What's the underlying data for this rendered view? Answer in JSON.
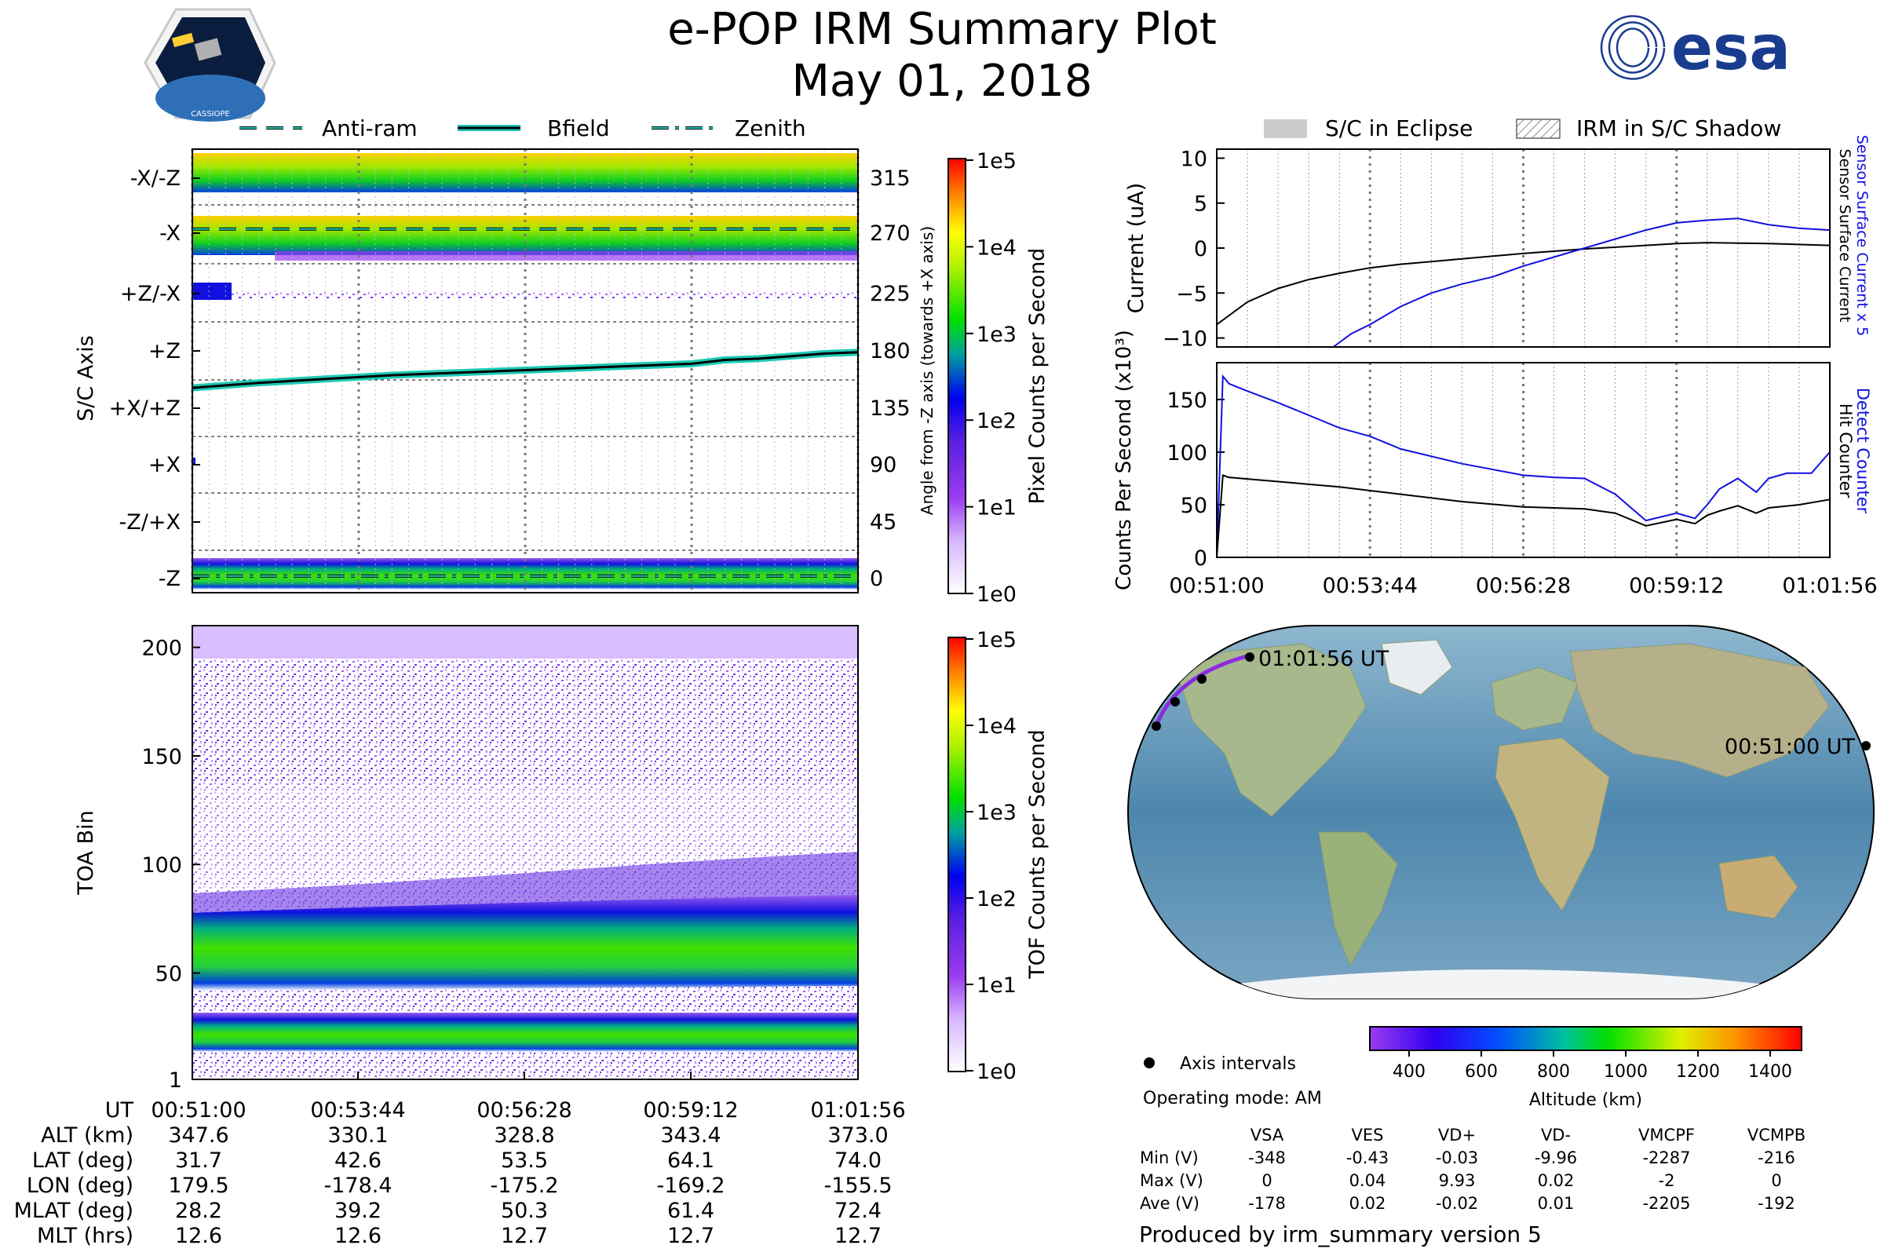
{
  "header": {
    "title": "e-POP IRM Summary Plot",
    "date": "May 01, 2018",
    "mission_logo_text": "CASSIOPE",
    "agency_logo_text": "esa"
  },
  "colors": {
    "accent_cyan": "#1ec9b4",
    "detect_blue": "#1010e0",
    "eclipse_gray": "#cccccc",
    "track_purple": "#8a2be2"
  },
  "time_ticks": [
    "00:51:00",
    "00:53:44",
    "00:56:28",
    "00:59:12",
    "01:01:56"
  ],
  "chart_data": [
    {
      "type": "heatmap",
      "id": "sc_axis_panel",
      "ylabel": "S/C Axis",
      "right_ylabel": "Angle from -Z axis (towards +X axis)",
      "legend": [
        {
          "name": "Anti-ram",
          "style": "dashed"
        },
        {
          "name": "Bfield",
          "style": "solid"
        },
        {
          "name": "Zenith",
          "style": "dashdot"
        }
      ],
      "axis_labels": [
        "-X/-Z",
        "-X",
        "+Z/-X",
        "+Z",
        "+X/+Z",
        "+X",
        "-Z/+X",
        "-Z"
      ],
      "angle_ticks": [
        315,
        270,
        225,
        180,
        135,
        90,
        45,
        0
      ],
      "colorbar": {
        "label": "Pixel Counts per Second",
        "ticks": [
          "1e5",
          "1e4",
          "1e3",
          "1e2",
          "1e1",
          "1e0"
        ]
      },
      "bfield_angle_deg": {
        "t": [
          0,
          0.1,
          0.2,
          0.3,
          0.4,
          0.5,
          0.6,
          0.7,
          0.75,
          0.8,
          0.85,
          0.9,
          0.95,
          1.0
        ],
        "values": [
          150,
          154,
          157,
          160,
          162,
          164,
          166,
          168,
          169,
          172,
          173,
          175,
          177,
          178
        ]
      },
      "antiram_angle_deg": 275,
      "zenith_angle_deg": 2
    },
    {
      "type": "heatmap",
      "id": "toa_panel",
      "ylabel": "TOA Bin",
      "yticks": [
        1,
        50,
        100,
        150,
        200
      ],
      "ylim": [
        1,
        210
      ],
      "colorbar": {
        "label": "TOF Counts per Second",
        "ticks": [
          "1e5",
          "1e4",
          "1e3",
          "1e2",
          "1e1",
          "1e0"
        ]
      },
      "bands": [
        {
          "center_bin": 57,
          "width": 18
        },
        {
          "center_bin": 21,
          "width": 10
        }
      ]
    },
    {
      "type": "line",
      "id": "current_panel",
      "ylabel": "Current (uA)",
      "yticks": [
        10,
        5,
        0,
        -5,
        -10
      ],
      "ylim": [
        -11,
        11
      ],
      "legend": [
        {
          "name": "S/C in Eclipse",
          "style": "gray-fill"
        },
        {
          "name": "IRM in S/C Shadow",
          "style": "hatch"
        }
      ],
      "right_labels": {
        "blue": "Sensor Surface Current x 5",
        "black": "Sensor Surface Current"
      },
      "series": [
        {
          "name": "Sensor Surface Current",
          "color": "#000000",
          "t": [
            0,
            0.05,
            0.1,
            0.15,
            0.2,
            0.25,
            0.3,
            0.35,
            0.4,
            0.5,
            0.6,
            0.7,
            0.75,
            0.8,
            0.9,
            1.0
          ],
          "values": [
            -8.5,
            -6,
            -4.5,
            -3.5,
            -2.8,
            -2.2,
            -1.8,
            -1.5,
            -1.2,
            -0.6,
            -0.1,
            0.3,
            0.5,
            0.6,
            0.5,
            0.3
          ]
        },
        {
          "name": "Sensor Surface Current x 5",
          "color": "#1010e0",
          "t": [
            0.19,
            0.22,
            0.25,
            0.3,
            0.35,
            0.4,
            0.45,
            0.5,
            0.55,
            0.6,
            0.65,
            0.7,
            0.75,
            0.8,
            0.85,
            0.9,
            0.95,
            1.0
          ],
          "values": [
            -11,
            -9.5,
            -8.5,
            -6.5,
            -5,
            -4,
            -3.2,
            -2,
            -1,
            0,
            1,
            2,
            2.8,
            3.1,
            3.3,
            2.6,
            2.2,
            2.0
          ]
        }
      ]
    },
    {
      "type": "line",
      "id": "counts_panel",
      "ylabel": "Counts Per Second (x10³)",
      "yticks": [
        150,
        100,
        50,
        0
      ],
      "ylim": [
        0,
        185
      ],
      "right_labels": {
        "blue": "Detect Counter",
        "black": "Hit Counter"
      },
      "series": [
        {
          "name": "Detect Counter",
          "color": "#1010e0",
          "t": [
            0,
            0.01,
            0.02,
            0.05,
            0.1,
            0.15,
            0.2,
            0.25,
            0.3,
            0.4,
            0.5,
            0.55,
            0.6,
            0.65,
            0.7,
            0.75,
            0.78,
            0.8,
            0.82,
            0.85,
            0.88,
            0.9,
            0.93,
            0.97,
            1.0
          ],
          "values": [
            0,
            172,
            165,
            158,
            147,
            135,
            123,
            115,
            103,
            89,
            78,
            76,
            75,
            60,
            35,
            42,
            37,
            50,
            65,
            75,
            62,
            75,
            80,
            80,
            100
          ]
        },
        {
          "name": "Hit Counter",
          "color": "#000000",
          "t": [
            0,
            0.01,
            0.02,
            0.1,
            0.2,
            0.3,
            0.4,
            0.5,
            0.6,
            0.65,
            0.7,
            0.75,
            0.78,
            0.8,
            0.82,
            0.85,
            0.88,
            0.9,
            0.95,
            1.0
          ],
          "values": [
            0,
            78,
            76,
            72,
            67,
            60,
            53,
            48,
            46,
            42,
            30,
            36,
            32,
            40,
            44,
            49,
            42,
            47,
            50,
            55
          ]
        }
      ]
    }
  ],
  "orbit_table": {
    "row_labels": [
      "UT",
      "ALT (km)",
      "LAT (deg)",
      "LON (deg)",
      "MLAT (deg)",
      "MLT (hrs)"
    ],
    "columns": [
      [
        "00:51:00",
        "347.6",
        "31.7",
        "179.5",
        "28.2",
        "12.6"
      ],
      [
        "00:53:44",
        "330.1",
        "42.6",
        "-178.4",
        "39.2",
        "12.6"
      ],
      [
        "00:56:28",
        "328.8",
        "53.5",
        "-175.2",
        "50.3",
        "12.7"
      ],
      [
        "00:59:12",
        "343.4",
        "64.1",
        "-169.2",
        "61.4",
        "12.7"
      ],
      [
        "01:01:56",
        "373.0",
        "74.0",
        "-155.5",
        "72.4",
        "12.7"
      ]
    ]
  },
  "map": {
    "start_label": "00:51:00 UT",
    "end_label": "01:01:56 UT",
    "legend_label": "Axis intervals",
    "operating_mode": "Operating mode: AM",
    "altitude_colorbar": {
      "label": "Altitude (km)",
      "ticks": [
        "400",
        "600",
        "800",
        "1000",
        "1200",
        "1400"
      ]
    }
  },
  "voltage_table": {
    "headers": [
      "VSA",
      "VES",
      "VD+",
      "VD-",
      "VMCPF",
      "VCMPB"
    ],
    "rows": [
      {
        "label": "Min (V)",
        "values": [
          "-348",
          "-0.43",
          "-0.03",
          "-9.96",
          "-2287",
          "-216"
        ]
      },
      {
        "label": "Max (V)",
        "values": [
          "0",
          "0.04",
          "9.93",
          "0.02",
          "-2",
          "0"
        ]
      },
      {
        "label": "Ave (V)",
        "values": [
          "-178",
          "0.02",
          "-0.02",
          "0.01",
          "-2205",
          "-192"
        ]
      }
    ]
  },
  "footer": {
    "produced_by": "Produced by irm_summary version 5"
  }
}
